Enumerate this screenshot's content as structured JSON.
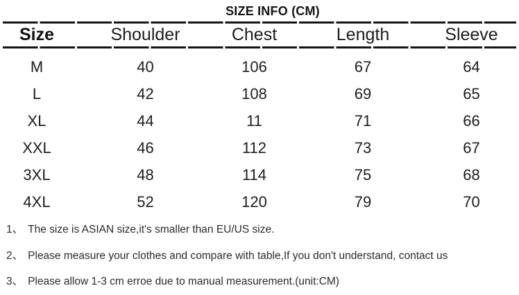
{
  "title": "SIZE INFO (CM)",
  "table": {
    "headers": [
      "Size",
      "Shoulder",
      "Chest",
      "Length",
      "Sleeve"
    ],
    "rows": [
      {
        "cells": [
          "M",
          "40",
          "106",
          "67",
          "64"
        ]
      },
      {
        "cells": [
          "L",
          "42",
          "108",
          "69",
          "65"
        ]
      },
      {
        "cells": [
          "XL",
          "44",
          "11",
          "71",
          "66"
        ]
      },
      {
        "cells": [
          "XXL",
          "46",
          "112",
          "73",
          "67"
        ]
      },
      {
        "cells": [
          "3XL",
          "48",
          "114",
          "75",
          "68"
        ]
      },
      {
        "cells": [
          "4XL",
          "52",
          "120",
          "79",
          "70"
        ]
      }
    ]
  },
  "notes": [
    {
      "num": "1、",
      "text": "The size is ASIAN size,it's smaller than EU/US size."
    },
    {
      "num": "2、",
      "text": "Please measure your clothes and compare with table,If you don't understand, contact us"
    },
    {
      "num": "3、",
      "text": "Please allow 1-3 cm erroe due to manual measurement.(unit:CM)"
    }
  ],
  "colors": {
    "background": "#ffffff",
    "text": "#1c1c1c",
    "rule": "#141414"
  }
}
